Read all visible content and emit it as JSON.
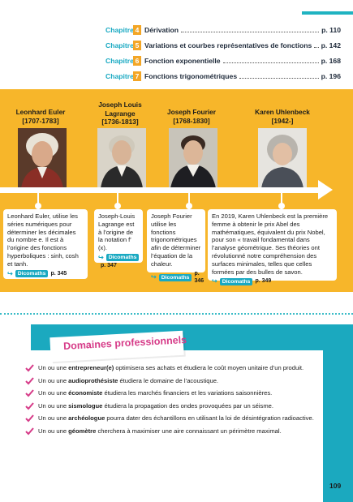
{
  "toc": [
    {
      "chapter_label": "Chapitre",
      "number": "4",
      "title": "Dérivation",
      "page": "p. 110"
    },
    {
      "chapter_label": "Chapitre",
      "number": "5",
      "title": "Variations et courbes représentatives de fonctions",
      "page": "p. 142"
    },
    {
      "chapter_label": "Chapitre",
      "number": "6",
      "title": "Fonction exponentielle",
      "page": "p. 168"
    },
    {
      "chapter_label": "Chapitre",
      "number": "7",
      "title": "Fonctions trigonométriques",
      "page": "p. 196"
    }
  ],
  "timeline": {
    "people": [
      {
        "name": "Leonhard Euler",
        "dates": "[1707-1783]",
        "card": "Leonhard Euler, utilise les séries numériques pour déterminer les décimales du nombre e. Il est à l’origine des fonctions hyperboliques : sinh, cosh et tanh.",
        "tag": "Dicomaths",
        "page": "p. 345"
      },
      {
        "name": "Joseph Louis Lagrange",
        "dates": "[1736-1813]",
        "card": "Joseph-Louis Lagrange est à l’origine de la notation f′(x).",
        "tag": "Dicomaths",
        "page": "p. 347"
      },
      {
        "name": "Joseph Fourier",
        "dates": "[1768-1830]",
        "card": "Joseph Fourier utilise les fonctions trigonométriques afin de déterminer l’équation de la chaleur.",
        "tag": "Dicomaths",
        "page": "p. 346"
      },
      {
        "name": "Karen Uhlenbeck",
        "dates": "[1942-]",
        "card": "En 2019, Karen Uhlenbeck est la première femme à obtenir le prix Abel des mathématiques, équivalent du prix Nobel, pour son « travail fondamental dans l’analyse géométrique. Ses théories ont révolutionné notre compréhension des surfaces minimales, telles que celles formées par des bulles de savon.",
        "tag": "Dicomaths",
        "page": "p. 349"
      }
    ]
  },
  "domaines": {
    "title": "Domaines professionnels",
    "items": [
      {
        "pre": "Un ou une ",
        "bold": "entrepreneur(e)",
        "post": " optimisera ses achats et étudiera le coût moyen unitaire d’un produit."
      },
      {
        "pre": "Un ou une ",
        "bold": "audioprothésiste",
        "post": " étudiera le domaine de l’acoustique."
      },
      {
        "pre": "Un ou une ",
        "bold": "économiste",
        "post": " étudiera les marchés financiers et les variations saisonnières."
      },
      {
        "pre": "Un ou une ",
        "bold": "sismologue",
        "post": " étudiera la propagation des ondes provoquées par un séisme."
      },
      {
        "pre": "Un ou une ",
        "bold": "archéologue",
        "post": " pourra dater des échantillons en utilisant la loi de désintégration radioactive."
      },
      {
        "pre": "Un ou une ",
        "bold": "géomètre",
        "post": " cherchera à maximiser une aire connaissant un périmètre maximal."
      }
    ]
  },
  "page_number": "109",
  "colors": {
    "teal": "#1ba9bf",
    "yellow": "#f7b62a",
    "orange": "#f3a626",
    "pink": "#d63b88"
  }
}
